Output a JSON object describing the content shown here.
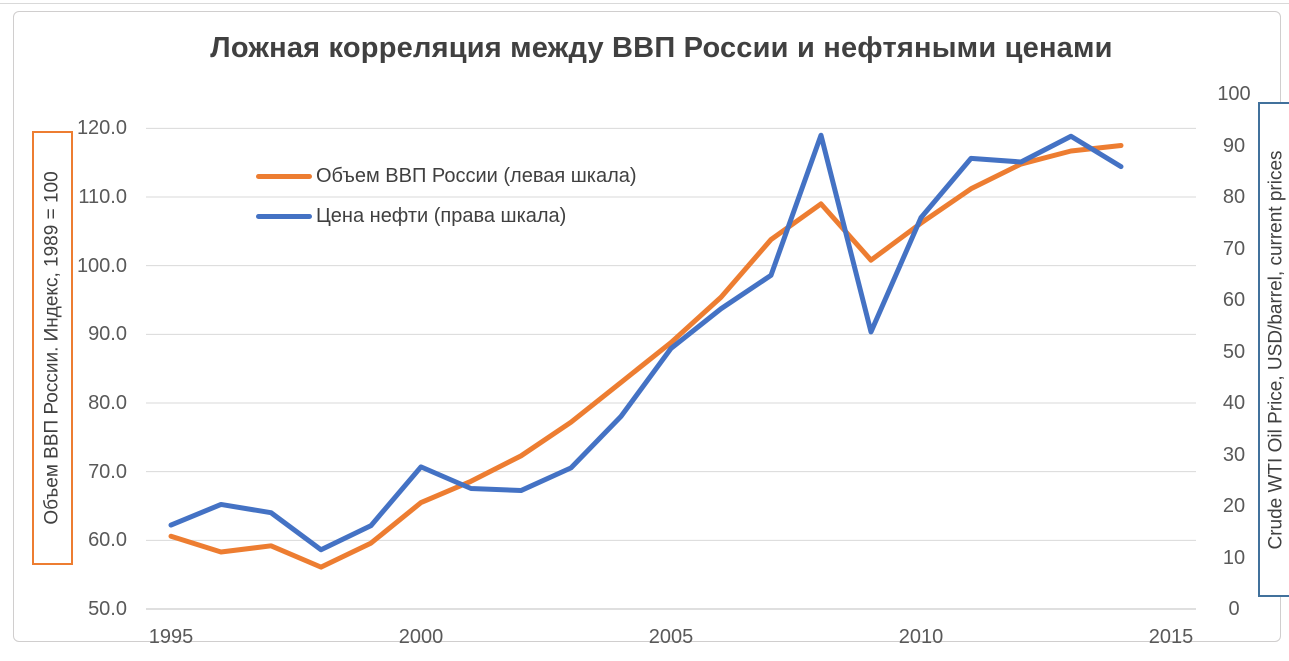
{
  "chart_data": {
    "type": "line",
    "title": "Ложная корреляция между ВВП России и нефтяными ценами",
    "categories": [
      1995,
      1996,
      1997,
      1998,
      1999,
      2000,
      2001,
      2002,
      2003,
      2004,
      2005,
      2006,
      2007,
      2008,
      2009,
      2010,
      2011,
      2012,
      2013,
      2014
    ],
    "series": [
      {
        "name": "Объем ВВП России (левая шкала)",
        "axis": "left",
        "color": "#ed7d31",
        "values": [
          60.6,
          58.3,
          59.2,
          56.1,
          59.6,
          65.5,
          68.6,
          72.3,
          77.2,
          83.0,
          88.8,
          95.4,
          103.8,
          109.0,
          100.8,
          106.2,
          111.2,
          114.8,
          116.7,
          117.5
        ]
      },
      {
        "name": "Цена нефти (права шкала)",
        "axis": "right",
        "color": "#4472c4",
        "values": [
          16.3,
          20.3,
          18.7,
          11.5,
          16.2,
          27.6,
          23.4,
          23.0,
          27.4,
          37.4,
          50.6,
          58.3,
          64.8,
          92.0,
          53.8,
          76.0,
          87.5,
          86.8,
          91.8,
          85.9
        ]
      }
    ],
    "left_axis": {
      "title": "Объем ВВП России. Индекс, 1989 = 100",
      "tick_labels": [
        "120.0",
        "110.0",
        "100.0",
        "90.0",
        "80.0",
        "70.0",
        "60.0",
        "50.0"
      ],
      "min": 50,
      "max": 125,
      "box_color": "#ed7d31"
    },
    "right_axis": {
      "title": "Crude WTI Oil Price, USD/barrel, current prices",
      "tick_labels": [
        "100",
        "90",
        "80",
        "70",
        "60",
        "50",
        "40",
        "30",
        "20",
        "10",
        "0"
      ],
      "min": 0,
      "max": 100,
      "box_color": "#41719c"
    },
    "x_axis": {
      "tick_labels": [
        "1995",
        "2000",
        "2005",
        "2010",
        "2015"
      ],
      "range": [
        1995,
        2015
      ]
    },
    "grid": "horizontal",
    "legend_position": "inside-top-left"
  },
  "styles": {
    "grid_color": "#d9d9d9",
    "axis_line_color": "#bfbfbf",
    "tick_text_color": "#595959",
    "title_color": "#404040",
    "frame_border_color": "#d0cece"
  }
}
